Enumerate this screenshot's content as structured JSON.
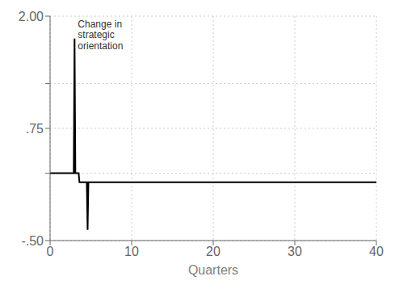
{
  "chart_data": {
    "type": "line",
    "xlabel": "Quarters",
    "x": [
      0,
      2.85,
      2.9,
      3.0,
      3.1,
      3.5,
      3.6,
      4.5,
      4.6,
      4.7,
      6.0,
      40
    ],
    "values": [
      0.25,
      0.25,
      0.25,
      1.75,
      0.25,
      0.25,
      0.15,
      0.15,
      -0.38,
      0.15,
      0.15,
      0.15
    ],
    "color": "#000000",
    "xlim": [
      0,
      40
    ],
    "ylim": [
      -0.5,
      2.0
    ],
    "xticks": [
      0,
      10,
      20,
      30,
      40
    ],
    "yticks": [
      {
        "value": -0.5,
        "label": "-.50"
      },
      {
        "value": 0.25,
        "label": null
      },
      {
        "value": 0.75,
        "label": ".75"
      },
      {
        "value": 1.25,
        "label": null
      },
      {
        "value": 2.0,
        "label": "2.00"
      }
    ],
    "grid": true,
    "annotations": [
      {
        "text": "Change in\nstrategic\norientation",
        "x": 3.5,
        "y": 1.95
      }
    ]
  }
}
